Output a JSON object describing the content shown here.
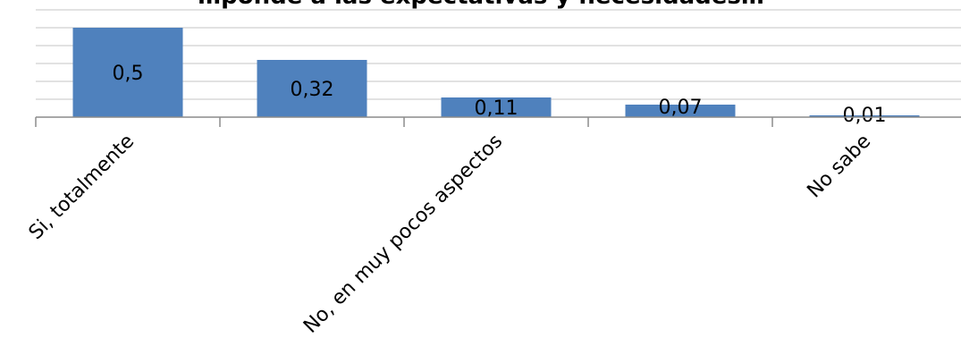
{
  "chart_data": {
    "type": "bar",
    "title": "…ponde a las expectativas y necesidades…",
    "categories": [
      "Si, totalmente",
      "",
      "No, en muy pocos aspectos",
      "",
      "No sabe"
    ],
    "values": [
      0.5,
      0.32,
      0.11,
      0.07,
      0.01
    ],
    "data_labels": [
      "0,5",
      "0,32",
      "0,11",
      "0,07",
      "0,01"
    ],
    "xlabel": "",
    "ylabel": "",
    "ylim": [
      0,
      0.6
    ],
    "grid": true,
    "legend": "none",
    "bar_color": "#4f81bd",
    "grid_color": "#d9d9d9",
    "axis_color": "#8c8c8c"
  }
}
